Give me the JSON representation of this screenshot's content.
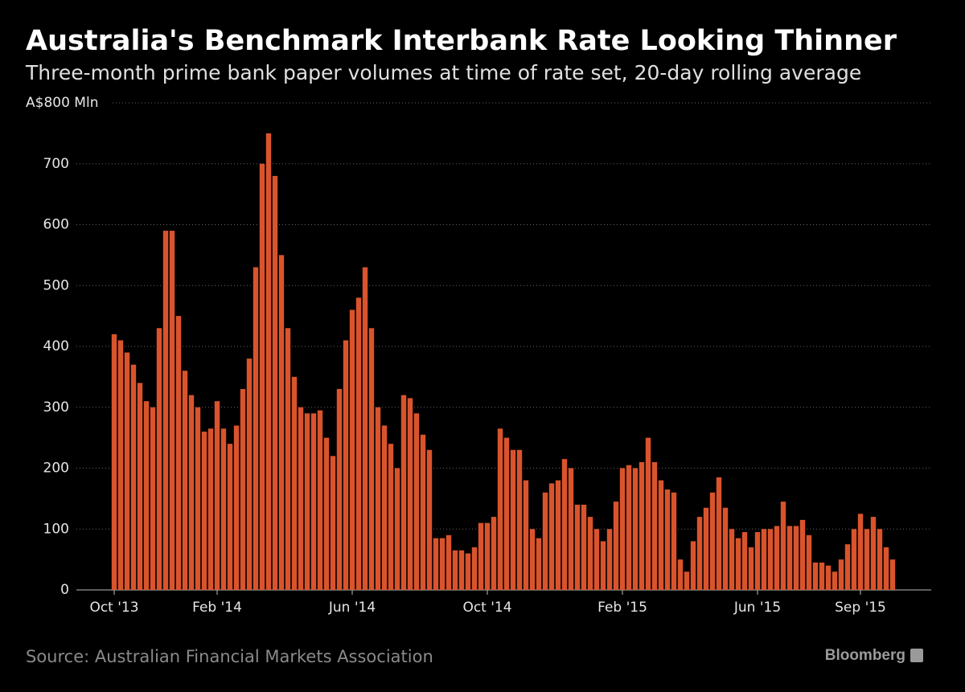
{
  "chart_data": {
    "type": "bar",
    "title": "Australia's Benchmark Interbank Rate Looking Thinner",
    "subtitle": "Three-month prime bank paper volumes at time of rate set, 20-day rolling average",
    "source": "Source: Australian Financial Markets Association",
    "brand": "Bloomberg",
    "color": "#d9542c",
    "grid": true,
    "ylim": [
      0,
      800
    ],
    "yticks": [
      0,
      100,
      200,
      300,
      400,
      500,
      600,
      700,
      {
        "value": 800,
        "label": "A$800 Mln"
      }
    ],
    "categories": [
      "Oct '13",
      null,
      null,
      null,
      null,
      null,
      null,
      null,
      null,
      null,
      null,
      null,
      null,
      null,
      null,
      null,
      "Feb '14",
      null,
      null,
      null,
      null,
      null,
      null,
      null,
      null,
      null,
      null,
      null,
      null,
      null,
      null,
      null,
      null,
      null,
      null,
      null,
      null,
      "Jun '14",
      null,
      null,
      null,
      null,
      null,
      null,
      null,
      null,
      null,
      null,
      null,
      null,
      null,
      null,
      null,
      null,
      null,
      null,
      null,
      null,
      "Oct '14",
      null,
      null,
      null,
      null,
      null,
      null,
      null,
      null,
      null,
      null,
      null,
      null,
      null,
      null,
      null,
      null,
      null,
      null,
      null,
      null,
      "Feb '15",
      null,
      null,
      null,
      null,
      null,
      null,
      null,
      null,
      null,
      null,
      null,
      null,
      null,
      null,
      null,
      null,
      null,
      null,
      null,
      null,
      "Jun '15",
      null,
      null,
      null,
      null,
      null,
      null,
      null,
      null,
      null,
      null,
      null,
      null,
      null,
      null,
      null,
      "Sep '15",
      null,
      null,
      null,
      null,
      null
    ],
    "values": [
      420,
      410,
      390,
      370,
      340,
      310,
      300,
      430,
      590,
      590,
      450,
      360,
      320,
      300,
      260,
      265,
      310,
      265,
      240,
      270,
      330,
      380,
      530,
      700,
      750,
      680,
      550,
      430,
      350,
      300,
      290,
      290,
      295,
      250,
      220,
      330,
      410,
      460,
      480,
      530,
      430,
      300,
      270,
      240,
      200,
      320,
      315,
      290,
      255,
      230,
      85,
      85,
      90,
      65,
      65,
      60,
      70,
      110,
      110,
      120,
      265,
      250,
      230,
      230,
      180,
      100,
      85,
      160,
      175,
      180,
      215,
      200,
      140,
      140,
      120,
      100,
      80,
      100,
      145,
      200,
      205,
      200,
      210,
      250,
      210,
      180,
      165,
      160,
      50,
      30,
      80,
      120,
      135,
      160,
      185,
      135,
      100,
      85,
      95,
      70,
      95,
      100,
      100,
      105,
      145,
      105,
      105,
      115,
      90,
      45,
      45,
      40,
      30,
      50,
      75,
      100,
      125,
      100,
      120,
      100,
      70,
      50
    ]
  }
}
